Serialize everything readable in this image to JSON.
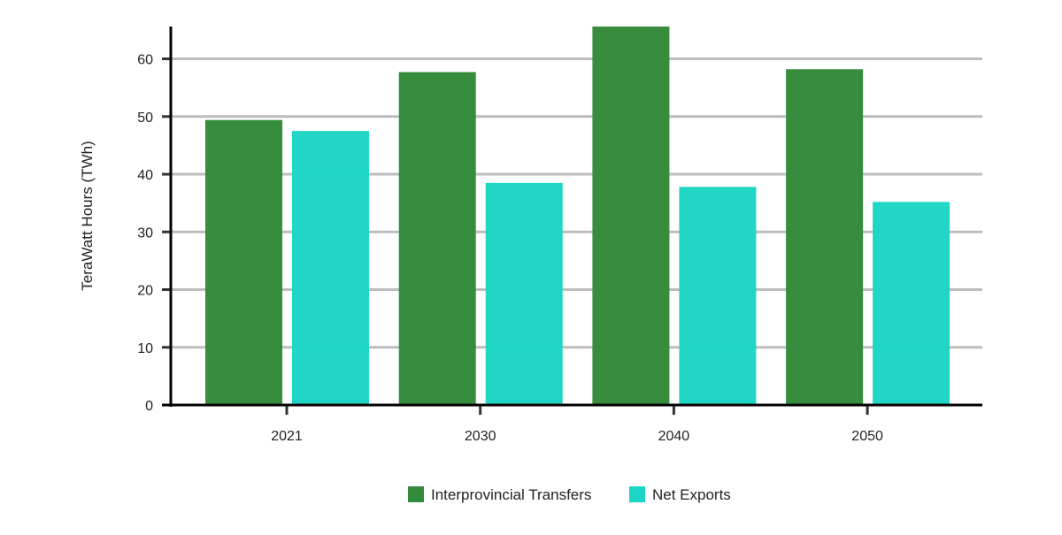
{
  "chart_data": {
    "type": "bar",
    "title": "",
    "xlabel": "",
    "ylabel": "TeraWatt Hours (TWh)",
    "categories": [
      "2021",
      "2030",
      "2040",
      "2050"
    ],
    "series": [
      {
        "name": "Interprovincial Transfers",
        "values": [
          49.4,
          57.7,
          65.6,
          58.2
        ],
        "color": "#338a3a"
      },
      {
        "name": "Net Exports",
        "values": [
          47.5,
          38.5,
          37.8,
          35.2
        ],
        "color": "#1dd5c4"
      }
    ],
    "ylim": [
      0,
      65.6
    ],
    "yticks": [
      0,
      10,
      20,
      30,
      40,
      50,
      60
    ],
    "grid": "horizontal",
    "legend": "bottom"
  }
}
